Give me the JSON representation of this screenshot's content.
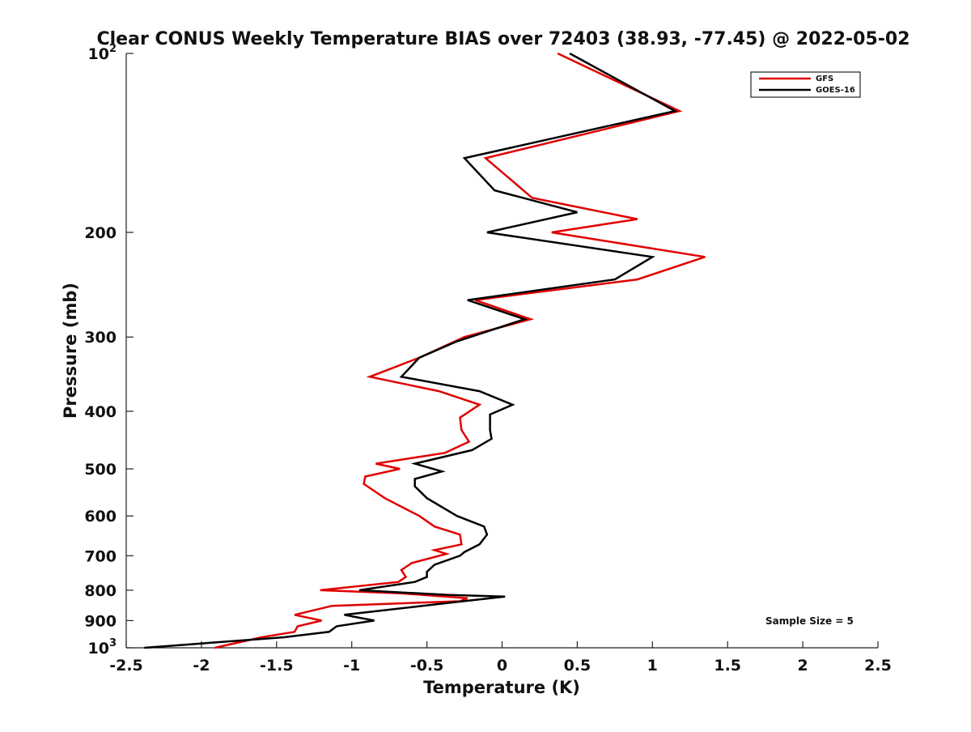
{
  "chart_data": {
    "type": "line",
    "title": "Clear CONUS Weekly Temperature BIAS over 72403 (38.93, -77.45) @ 2022-05-02",
    "xlabel": "Temperature (K)",
    "ylabel": "Pressure (mb)",
    "xlim": [
      -2.5,
      2.5
    ],
    "ylim": [
      100,
      1000
    ],
    "y_scale": "log",
    "y_reversed": true,
    "x_ticks": [
      -2.5,
      -2,
      -1.5,
      -1,
      -0.5,
      0,
      0.5,
      1,
      1.5,
      2,
      2.5
    ],
    "x_tick_labels": [
      "-2.5",
      "-2",
      "-1.5",
      "-1",
      "-0.5",
      "0",
      "0.5",
      "1",
      "1.5",
      "2",
      "2.5"
    ],
    "y_ticks": [
      {
        "value": 100,
        "base": "10",
        "exp": "2"
      },
      {
        "value": 200,
        "label": "200"
      },
      {
        "value": 300,
        "label": "300"
      },
      {
        "value": 400,
        "label": "400"
      },
      {
        "value": 500,
        "label": "500"
      },
      {
        "value": 600,
        "label": "600"
      },
      {
        "value": 700,
        "label": "700"
      },
      {
        "value": 800,
        "label": "800"
      },
      {
        "value": 900,
        "label": "900"
      },
      {
        "value": 1000,
        "base": "10",
        "exp": "3"
      }
    ],
    "grid": false,
    "legend_position": "top-right",
    "annotation": "Sample Size = 5",
    "series": [
      {
        "name": "GFS",
        "color": "#e00000",
        "points": [
          [
            0.37,
            100
          ],
          [
            1.18,
            125
          ],
          [
            -0.11,
            150
          ],
          [
            0.2,
            175
          ],
          [
            0.9,
            190
          ],
          [
            0.33,
            200
          ],
          [
            1.35,
            220
          ],
          [
            0.9,
            240
          ],
          [
            -0.18,
            260
          ],
          [
            0.19,
            280
          ],
          [
            -0.25,
            300
          ],
          [
            -0.55,
            325
          ],
          [
            -0.88,
            350
          ],
          [
            -0.42,
            370
          ],
          [
            -0.15,
            390
          ],
          [
            -0.28,
            410
          ],
          [
            -0.27,
            430
          ],
          [
            -0.22,
            450
          ],
          [
            -0.38,
            470
          ],
          [
            -0.84,
            490
          ],
          [
            -0.68,
            500
          ],
          [
            -0.91,
            515
          ],
          [
            -0.92,
            530
          ],
          [
            -0.78,
            560
          ],
          [
            -0.55,
            600
          ],
          [
            -0.45,
            625
          ],
          [
            -0.28,
            645
          ],
          [
            -0.27,
            670
          ],
          [
            -0.45,
            685
          ],
          [
            -0.37,
            695
          ],
          [
            -0.6,
            720
          ],
          [
            -0.67,
            740
          ],
          [
            -0.64,
            760
          ],
          [
            -0.69,
            775
          ],
          [
            -1.21,
            800
          ],
          [
            -0.67,
            810
          ],
          [
            -0.23,
            825
          ],
          [
            -0.28,
            835
          ],
          [
            -1.13,
            850
          ],
          [
            -1.38,
            880
          ],
          [
            -1.2,
            900
          ],
          [
            -1.36,
            920
          ],
          [
            -1.38,
            940
          ],
          [
            -1.6,
            960
          ],
          [
            -1.91,
            1000
          ]
        ]
      },
      {
        "name": "GOES-16",
        "color": "#000000",
        "points": [
          [
            0.45,
            100
          ],
          [
            1.15,
            125
          ],
          [
            -0.25,
            150
          ],
          [
            -0.05,
            170
          ],
          [
            0.5,
            185
          ],
          [
            -0.1,
            200
          ],
          [
            1.0,
            220
          ],
          [
            0.75,
            240
          ],
          [
            -0.23,
            260
          ],
          [
            0.15,
            280
          ],
          [
            -0.3,
            305
          ],
          [
            -0.55,
            325
          ],
          [
            -0.67,
            350
          ],
          [
            -0.15,
            370
          ],
          [
            0.07,
            390
          ],
          [
            -0.08,
            405
          ],
          [
            -0.08,
            430
          ],
          [
            -0.07,
            445
          ],
          [
            -0.2,
            465
          ],
          [
            -0.58,
            490
          ],
          [
            -0.4,
            505
          ],
          [
            -0.58,
            520
          ],
          [
            -0.58,
            535
          ],
          [
            -0.5,
            560
          ],
          [
            -0.3,
            600
          ],
          [
            -0.12,
            625
          ],
          [
            -0.1,
            645
          ],
          [
            -0.15,
            670
          ],
          [
            -0.25,
            690
          ],
          [
            -0.28,
            700
          ],
          [
            -0.45,
            725
          ],
          [
            -0.5,
            745
          ],
          [
            -0.5,
            760
          ],
          [
            -0.58,
            775
          ],
          [
            -0.95,
            800
          ],
          [
            -0.35,
            815
          ],
          [
            0.02,
            820
          ],
          [
            -0.35,
            840
          ],
          [
            -1.05,
            880
          ],
          [
            -0.85,
            900
          ],
          [
            -1.1,
            920
          ],
          [
            -1.15,
            940
          ],
          [
            -1.45,
            960
          ],
          [
            -2.38,
            1000
          ]
        ]
      }
    ]
  }
}
